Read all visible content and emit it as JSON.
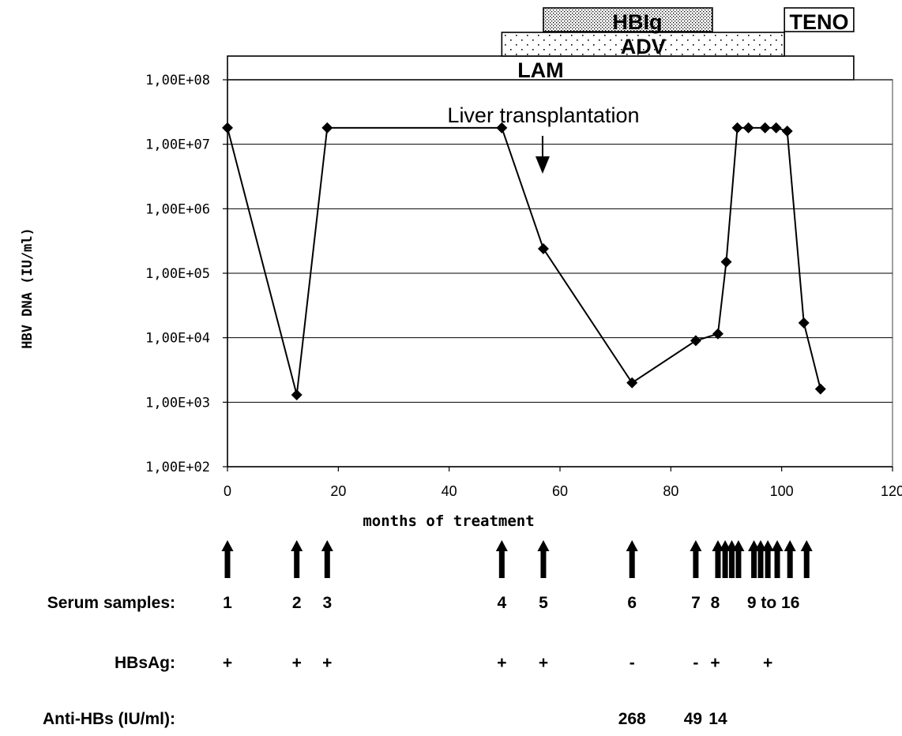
{
  "chart_data": {
    "type": "line",
    "xlabel": "months of treatment",
    "ylabel": "HBV DNA (IU/ml)",
    "xlim": [
      0,
      120
    ],
    "x_ticks": [
      0,
      20,
      40,
      60,
      80,
      100,
      120
    ],
    "ylim": [
      100,
      100000000
    ],
    "y_scale": "log",
    "y_ticks": [
      {
        "value": 100,
        "label": "1,00E+02"
      },
      {
        "value": 1000,
        "label": "1,00E+03"
      },
      {
        "value": 10000,
        "label": "1,00E+04"
      },
      {
        "value": 100000,
        "label": "1,00E+05"
      },
      {
        "value": 1000000,
        "label": "1,00E+06"
      },
      {
        "value": 10000000,
        "label": "1,00E+07"
      },
      {
        "value": 100000000,
        "label": "1,00E+08"
      }
    ],
    "grid": "horizontal",
    "series": [
      {
        "x": [
          0,
          12.5,
          18,
          49.5,
          57,
          73,
          84.5,
          88.5,
          90,
          92,
          94,
          97,
          99,
          101,
          104,
          107
        ],
        "y": [
          18000000,
          1300,
          18000000,
          18000000,
          240000,
          2000,
          9000,
          11500,
          150000,
          18000000,
          18000000,
          18000000,
          18000000,
          16000000,
          17000,
          1600
        ]
      }
    ],
    "annotations": [
      {
        "text": "Liver transplantation",
        "x": 57
      }
    ],
    "treatment_bars": [
      {
        "label": "LAM",
        "start": 0,
        "end": 113,
        "pattern": "none"
      },
      {
        "label": "ADV",
        "start": 49.5,
        "end": 100.5,
        "pattern": "sparse-dots"
      },
      {
        "label": "HBIg",
        "start": 57,
        "end": 87.5,
        "pattern": "dense-dots"
      },
      {
        "label": "TENO",
        "start": 100.5,
        "end": 113,
        "pattern": "none"
      }
    ],
    "sample_arrows_x": [
      0,
      12.5,
      18,
      49.5,
      57,
      73,
      84.5,
      88.5,
      89.8,
      91,
      92.2,
      95,
      96.2,
      97.5,
      99.2,
      101.5,
      104.5
    ],
    "rows": [
      {
        "label": "Serum samples:",
        "items": [
          {
            "x": 0,
            "text": "1"
          },
          {
            "x": 12.5,
            "text": "2"
          },
          {
            "x": 18,
            "text": "3"
          },
          {
            "x": 49.5,
            "text": "4"
          },
          {
            "x": 57,
            "text": "5"
          },
          {
            "x": 73,
            "text": "6"
          },
          {
            "x": 84.5,
            "text": "7"
          },
          {
            "x": 88,
            "text": "8"
          },
          {
            "x": 98.5,
            "text": "9 to 16"
          }
        ]
      },
      {
        "label": "HBsAg:",
        "items": [
          {
            "x": 0,
            "text": "+"
          },
          {
            "x": 12.5,
            "text": "+"
          },
          {
            "x": 18,
            "text": "+"
          },
          {
            "x": 49.5,
            "text": "+"
          },
          {
            "x": 57,
            "text": "+"
          },
          {
            "x": 73,
            "text": "-"
          },
          {
            "x": 84.5,
            "text": "-"
          },
          {
            "x": 88,
            "text": "+"
          },
          {
            "x": 97.5,
            "text": "+"
          }
        ]
      },
      {
        "label": "Anti-HBs (IU/ml):",
        "items": [
          {
            "x": 73,
            "text": "268"
          },
          {
            "x": 84,
            "text": "49"
          },
          {
            "x": 88.5,
            "text": "14"
          }
        ]
      }
    ]
  }
}
